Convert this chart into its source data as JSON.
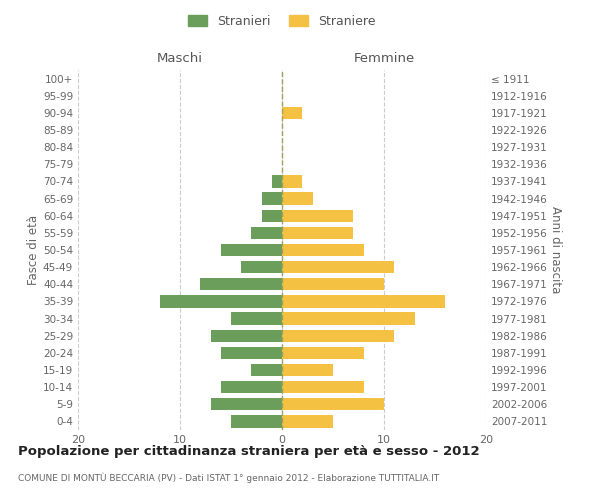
{
  "age_groups": [
    "0-4",
    "5-9",
    "10-14",
    "15-19",
    "20-24",
    "25-29",
    "30-34",
    "35-39",
    "40-44",
    "45-49",
    "50-54",
    "55-59",
    "60-64",
    "65-69",
    "70-74",
    "75-79",
    "80-84",
    "85-89",
    "90-94",
    "95-99",
    "100+"
  ],
  "birth_years": [
    "2007-2011",
    "2002-2006",
    "1997-2001",
    "1992-1996",
    "1987-1991",
    "1982-1986",
    "1977-1981",
    "1972-1976",
    "1967-1971",
    "1962-1966",
    "1957-1961",
    "1952-1956",
    "1947-1951",
    "1942-1946",
    "1937-1941",
    "1932-1936",
    "1927-1931",
    "1922-1926",
    "1917-1921",
    "1912-1916",
    "≤ 1911"
  ],
  "maschi": [
    5,
    7,
    6,
    3,
    6,
    7,
    5,
    12,
    8,
    4,
    6,
    3,
    2,
    2,
    1,
    0,
    0,
    0,
    0,
    0,
    0
  ],
  "femmine": [
    5,
    10,
    8,
    5,
    8,
    11,
    13,
    16,
    10,
    11,
    8,
    7,
    7,
    3,
    2,
    0,
    0,
    0,
    2,
    0,
    0
  ],
  "male_color": "#6a9e5a",
  "female_color": "#f5c142",
  "background_color": "#ffffff",
  "grid_color": "#cccccc",
  "title": "Popolazione per cittadinanza straniera per età e sesso - 2012",
  "subtitle": "COMUNE DI MONTÙ BECCARIA (PV) - Dati ISTAT 1° gennaio 2012 - Elaborazione TUTTITALIA.IT",
  "left_header": "Maschi",
  "right_header": "Femmine",
  "left_ylabel": "Fasce di età",
  "right_ylabel": "Anni di nascita",
  "xlim": 20,
  "legend_stranieri": "Stranieri",
  "legend_straniere": "Straniere"
}
